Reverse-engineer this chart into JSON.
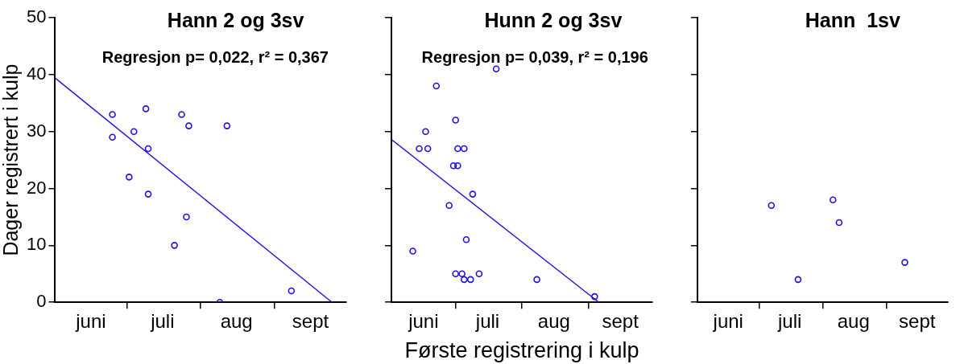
{
  "chart_data": [
    {
      "type": "scatter",
      "title": "Hann 2 og 3sv",
      "ylabel": "Dager registrert i kulp",
      "annotations": [
        "Regresjon p= 0,022, r² = 0,367"
      ],
      "marker": "circle",
      "xlim": [
        "--06-01",
        "--10-01"
      ],
      "xticks": [
        {
          "value": "--06-16",
          "label": "juni"
        },
        {
          "value": "--07-01",
          "label": null
        },
        {
          "value": "--07-16",
          "label": "juli"
        },
        {
          "value": "--08-01",
          "label": null
        },
        {
          "value": "--08-16",
          "label": "aug"
        },
        {
          "value": "--09-01",
          "label": null
        },
        {
          "value": "--09-16",
          "label": "sept"
        }
      ],
      "ylim": [
        0,
        50
      ],
      "yticks": [
        0,
        10,
        20,
        30,
        40,
        50
      ],
      "series": [
        {
          "color": "#1f0fe8",
          "x": [
            "--06-25",
            "--06-25",
            "--07-09",
            "--07-04",
            "--07-10",
            "--07-02",
            "--07-10",
            "--07-24",
            "--07-27",
            "--08-12",
            "--07-21",
            "--07-26",
            "--08-09",
            "--09-08"
          ],
          "values": [
            33,
            29,
            34,
            30,
            27,
            22,
            19,
            33,
            31,
            31,
            10,
            15,
            0,
            2
          ]
        },
        {
          "type": "line",
          "marker": "none",
          "color": "#1f0fe8",
          "x": [
            "--06-01",
            "--09-25"
          ],
          "values": [
            39.4,
            0
          ]
        }
      ]
    },
    {
      "type": "scatter",
      "title": "Hunn 2 og 3sv",
      "xlabel": "Første registrering i kulp",
      "annotations": [
        "Regresjon p= 0,039, r² = 0,196"
      ],
      "marker": "circle",
      "tick_labels": "x",
      "xlim": [
        "--06-01",
        "--10-01"
      ],
      "xticks": [
        {
          "value": "--06-16",
          "label": "juni"
        },
        {
          "value": "--07-01",
          "label": null
        },
        {
          "value": "--07-16",
          "label": "juli"
        },
        {
          "value": "--08-01",
          "label": null
        },
        {
          "value": "--08-16",
          "label": "aug"
        },
        {
          "value": "--09-01",
          "label": null
        },
        {
          "value": "--09-16",
          "label": "sept"
        }
      ],
      "ylim": [
        0,
        50
      ],
      "yticks": [
        0,
        10,
        20,
        30,
        40,
        50
      ],
      "series": [
        {
          "color": "#1f0fe8",
          "x": [
            "--07-20",
            "--06-22",
            "--07-01",
            "--06-17",
            "--06-14",
            "--06-18",
            "--07-02",
            "--07-05",
            "--06-30",
            "--07-02",
            "--07-09",
            "--06-28",
            "--07-06",
            "--06-11",
            "--07-01",
            "--07-04",
            "--07-05",
            "--07-08",
            "--07-12",
            "--08-08",
            "--09-04"
          ],
          "values": [
            41,
            38,
            32,
            30,
            27,
            27,
            27,
            27,
            24,
            24,
            19,
            17,
            11,
            9,
            5,
            5,
            4,
            4,
            5,
            4,
            1
          ]
        },
        {
          "type": "line",
          "marker": "none",
          "color": "#1f0fe8",
          "x": [
            "--06-01",
            "--09-06"
          ],
          "values": [
            28.6,
            0
          ]
        }
      ]
    },
    {
      "type": "scatter",
      "title": "Hann  1sv",
      "marker": "circle",
      "tick_labels": "x",
      "xlim": [
        "--06-01",
        "--10-01"
      ],
      "xticks": [
        {
          "value": "--06-16",
          "label": "juni"
        },
        {
          "value": "--07-01",
          "label": null
        },
        {
          "value": "--07-16",
          "label": "juli"
        },
        {
          "value": "--08-01",
          "label": null
        },
        {
          "value": "--08-16",
          "label": "aug"
        },
        {
          "value": "--09-01",
          "label": null
        },
        {
          "value": "--09-16",
          "label": "sept"
        }
      ],
      "ylim": [
        0,
        50
      ],
      "yticks": [
        0,
        10,
        20,
        30,
        40,
        50
      ],
      "series": [
        {
          "color": "#1f0fe8",
          "x": [
            "--07-07",
            "--07-20",
            "--08-06",
            "--08-09",
            "--09-10"
          ],
          "values": [
            17,
            4,
            18,
            14,
            7
          ]
        }
      ]
    }
  ]
}
